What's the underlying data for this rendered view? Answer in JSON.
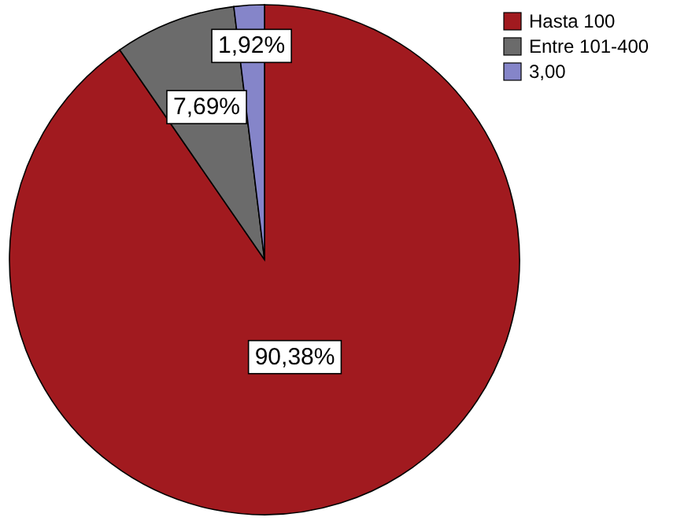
{
  "chart_data": {
    "type": "pie",
    "categories": [
      "Hasta 100",
      "Entre 101-400",
      "3,00"
    ],
    "values": [
      90.38,
      7.69,
      1.92
    ],
    "colors": [
      "#a11a1f",
      "#6b6b6b",
      "#8585c9"
    ],
    "value_labels": [
      "90,38%",
      "7,69%",
      "1,92%"
    ],
    "legend": "top right"
  }
}
